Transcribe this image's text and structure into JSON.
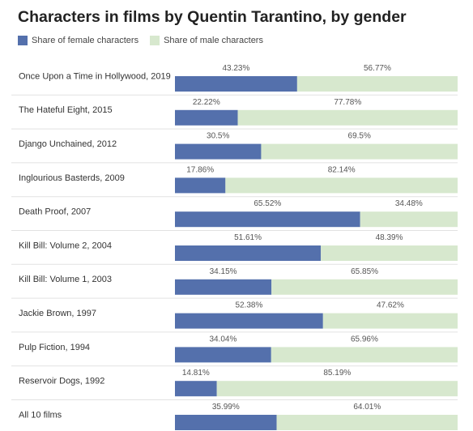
{
  "chart_data": {
    "type": "bar",
    "orientation": "horizontal",
    "stacked": true,
    "title": "Characters in films by Quentin Tarantino, by gender",
    "categories": [
      "Once Upon a Time in Hollywood, 2019",
      "The Hateful Eight, 2015",
      "Django Unchained, 2012",
      "Inglourious Basterds, 2009",
      "Death Proof, 2007",
      "Kill Bill: Volume 2, 2004",
      "Kill Bill: Volume 1, 2003",
      "Jackie Brown, 1997",
      "Pulp Fiction, 1994",
      "Reservoir Dogs, 1992",
      "All 10 films"
    ],
    "series": [
      {
        "name": "Share of female characters",
        "color": "#5470ac",
        "values": [
          43.23,
          22.22,
          30.5,
          17.86,
          65.52,
          51.61,
          34.15,
          52.38,
          34.04,
          14.81,
          35.99
        ],
        "labels": [
          "43.23%",
          "22.22%",
          "30.5%",
          "17.86%",
          "65.52%",
          "51.61%",
          "34.15%",
          "52.38%",
          "34.04%",
          "14.81%",
          "35.99%"
        ]
      },
      {
        "name": "Share of male characters",
        "color": "#d7e8ce",
        "values": [
          56.77,
          77.78,
          69.5,
          82.14,
          34.48,
          48.39,
          65.85,
          47.62,
          65.96,
          85.19,
          64.01
        ],
        "labels": [
          "56.77%",
          "77.78%",
          "69.5%",
          "82.14%",
          "34.48%",
          "48.39%",
          "65.85%",
          "47.62%",
          "65.96%",
          "85.19%",
          "64.01%"
        ]
      }
    ],
    "xlim": [
      0,
      100
    ],
    "legend": "top-left",
    "grid": false
  }
}
